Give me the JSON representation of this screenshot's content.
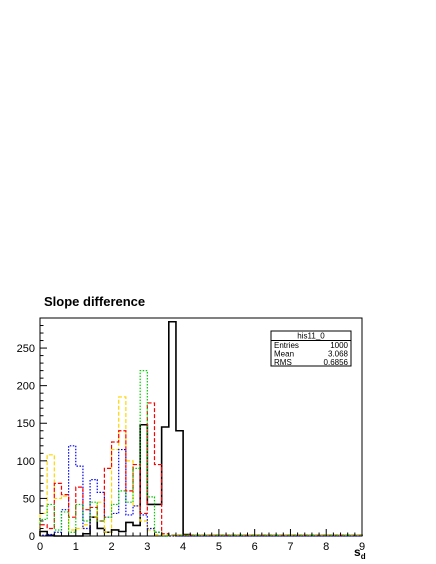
{
  "chart_data": {
    "type": "histogram",
    "title": "Slope difference",
    "xlabel": "s",
    "xlabel_sub": "d",
    "ylabel": "",
    "xlim": [
      0,
      9
    ],
    "ylim": [
      0,
      290
    ],
    "xticks": [
      0,
      1,
      2,
      3,
      4,
      5,
      6,
      7,
      8,
      9
    ],
    "yticks": [
      0,
      50,
      100,
      150,
      200,
      250
    ],
    "bin_width": 0.2,
    "grid": false,
    "stats_box": {
      "name": "his11_0",
      "rows": [
        {
          "label": "Entries",
          "value": "1000"
        },
        {
          "label": "Mean",
          "value": "3.068"
        },
        {
          "label": "RMS",
          "value": "0.6856"
        }
      ]
    },
    "series": [
      {
        "color": "#000000",
        "style": "solid",
        "width": 1.6,
        "values": [
          6,
          1,
          0,
          0,
          0,
          0,
          3,
          25,
          10,
          5,
          8,
          6,
          18,
          14,
          148,
          42,
          42,
          145,
          285,
          140,
          2,
          1,
          1,
          1,
          1,
          1,
          1,
          1,
          1,
          1,
          1,
          1,
          1,
          1,
          1,
          1,
          1,
          1,
          1,
          1,
          1,
          1,
          1,
          1,
          1
        ]
      },
      {
        "color": "#ffd700",
        "style": "dashed",
        "width": 1.2,
        "values": [
          30,
          108,
          50,
          53,
          8,
          10,
          15,
          25,
          45,
          5,
          115,
          185,
          100,
          40,
          20,
          8,
          2,
          1,
          0,
          1,
          1,
          1,
          1,
          1,
          1,
          1,
          1,
          1,
          1,
          1,
          1,
          1,
          1,
          1,
          1,
          1,
          1,
          1,
          1,
          1,
          1,
          1,
          1,
          1,
          1
        ]
      },
      {
        "color": "#0000ff",
        "style": "dotted",
        "width": 1.2,
        "values": [
          1,
          2,
          5,
          35,
          120,
          93,
          10,
          75,
          58,
          25,
          30,
          115,
          28,
          40,
          28,
          10,
          5,
          0,
          0,
          0,
          0,
          0,
          0,
          0,
          0,
          0,
          0,
          0,
          0,
          0,
          0,
          0,
          0,
          0,
          0,
          0,
          0,
          0,
          0,
          0,
          0,
          0,
          0,
          0,
          0
        ]
      },
      {
        "color": "#ff0000",
        "style": "dashed",
        "width": 1.2,
        "values": [
          15,
          10,
          70,
          55,
          25,
          65,
          35,
          38,
          20,
          90,
          125,
          140,
          60,
          95,
          30,
          177,
          95,
          3,
          1,
          1,
          1,
          1,
          1,
          1,
          1,
          1,
          1,
          1,
          1,
          1,
          1,
          1,
          1,
          1,
          1,
          1,
          1,
          1,
          1,
          1,
          1,
          1,
          1,
          1,
          1
        ]
      },
      {
        "color": "#00cc00",
        "style": "dotted",
        "width": 1.2,
        "values": [
          22,
          42,
          8,
          32,
          5,
          42,
          20,
          45,
          20,
          25,
          42,
          60,
          45,
          90,
          220,
          52,
          5,
          0,
          1,
          1,
          1,
          1,
          1,
          1,
          1,
          1,
          1,
          1,
          1,
          1,
          1,
          1,
          1,
          1,
          1,
          1,
          1,
          1,
          1,
          1,
          1,
          1,
          1,
          1,
          1
        ]
      }
    ]
  }
}
